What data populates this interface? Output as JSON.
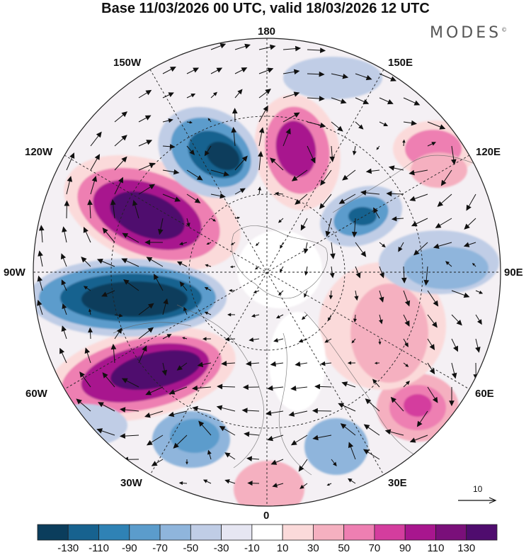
{
  "title": "Base 11/03/2026 00 UTC, valid 18/03/2026 12 UTC",
  "brand": "MODES",
  "brand_mark": "©",
  "longitude_labels": {
    "lon180": "180",
    "lon150W": "150W",
    "lon150E": "150E",
    "lon120W": "120W",
    "lon120E": "120E",
    "lon90W": "90W",
    "lon90E": "90E",
    "lon60W": "60W",
    "lon60E": "60E",
    "lon30W": "30W",
    "lon30E": "30E",
    "lon0": "0"
  },
  "reference_vector_label": "10",
  "colorbar": {
    "labels": [
      "-130",
      "-110",
      "-90",
      "-70",
      "-50",
      "-30",
      "-10",
      "10",
      "30",
      "50",
      "70",
      "90",
      "110",
      "130"
    ],
    "colors": [
      "#0b3d5c",
      "#17628f",
      "#2f82b5",
      "#5b9ccc",
      "#8fb5dc",
      "#c0cde6",
      "#e6e6f2",
      "#ffffff",
      "#fbdada",
      "#f5b0c0",
      "#ee7fb2",
      "#d43d9e",
      "#a8168e",
      "#7a0f7a",
      "#4f0c6e"
    ]
  },
  "colors": {
    "strong_negative": "#0b3d5c",
    "strong_positive": "#4f0c6e",
    "frame": "#222222"
  }
}
